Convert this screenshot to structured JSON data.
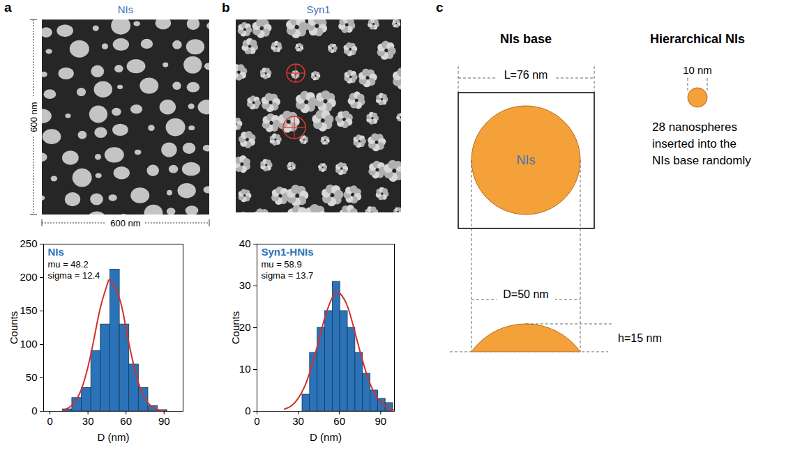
{
  "panel_letters": [
    "a",
    "b",
    "c"
  ],
  "images": [
    {
      "title": "NIs",
      "width_label": "600 nm",
      "height_label": "600 nm"
    },
    {
      "title": "Syn1"
    }
  ],
  "chart_data": [
    {
      "type": "histogram",
      "title": "NIs",
      "annotations": [
        "mu = 48.2",
        "sigma = 12.4"
      ],
      "xlabel": "D (nm)",
      "ylabel": "Counts",
      "bins": [
        10,
        17.5,
        25,
        32.5,
        40,
        47.5,
        55,
        62.5,
        70,
        77.5,
        85,
        92.5
      ],
      "counts": [
        3,
        20,
        35,
        90,
        130,
        212,
        130,
        70,
        35,
        8,
        2
      ],
      "color": "#2a73b8",
      "fit": {
        "color": "#d0312d",
        "x": [
          10,
          15,
          20,
          25,
          30,
          35,
          40,
          45,
          48,
          55,
          60,
          65,
          70,
          75,
          80,
          85,
          90
        ],
        "values": [
          1.7,
          5.4,
          14.7,
          33.9,
          66.4,
          110.6,
          156.7,
          188.6,
          195,
          167.8,
          124,
          77.9,
          41.6,
          18.9,
          7.3,
          2.4,
          0.7
        ]
      },
      "xlim": [
        -5,
        105
      ],
      "xticks": [
        0,
        30,
        60,
        90
      ],
      "ylim": [
        0,
        250
      ],
      "yticks": [
        0,
        50,
        100,
        150,
        200,
        250
      ]
    },
    {
      "type": "histogram",
      "title": "Syn1-HNIs",
      "annotations": [
        "mu = 58.9",
        "sigma = 13.7"
      ],
      "xlabel": "D (nm)",
      "ylabel": "Counts",
      "bins": [
        33,
        38.5,
        44,
        49.5,
        55,
        60.5,
        66,
        71.5,
        77,
        82.5,
        88,
        93.5,
        99
      ],
      "counts": [
        4,
        14,
        20,
        24,
        31,
        24,
        20,
        14,
        9,
        5,
        3,
        2
      ],
      "color": "#2a73b8",
      "fit": {
        "color": "#d0312d",
        "x": [
          20,
          25,
          30,
          35,
          40,
          45,
          50,
          55,
          59,
          65,
          70,
          75,
          80,
          85,
          90,
          95,
          100
        ],
        "values": [
          0.5,
          1.3,
          3.1,
          6.2,
          11.0,
          17.0,
          23.1,
          27.4,
          28.5,
          25.8,
          20.5,
          14.3,
          8.7,
          4.6,
          2.2,
          0.9,
          0.3
        ]
      },
      "xlim": [
        0,
        100
      ],
      "xticks": [
        0,
        30,
        60,
        90
      ],
      "ylim": [
        0,
        40
      ],
      "yticks": [
        0,
        10,
        20,
        30,
        40
      ]
    }
  ],
  "diagram": {
    "base_title": "NIs base",
    "hier_title": "Hierarchical NIs",
    "square_label": "L=76 nm",
    "circle_label": "NIs",
    "diameter_label": "D=50 nm",
    "height_label": "h=15 nm",
    "sphere_label": "10 nm",
    "note": [
      "28 nanospheres",
      "inserted into the",
      "NIs base randomly"
    ],
    "fill": "#f5a13a"
  }
}
